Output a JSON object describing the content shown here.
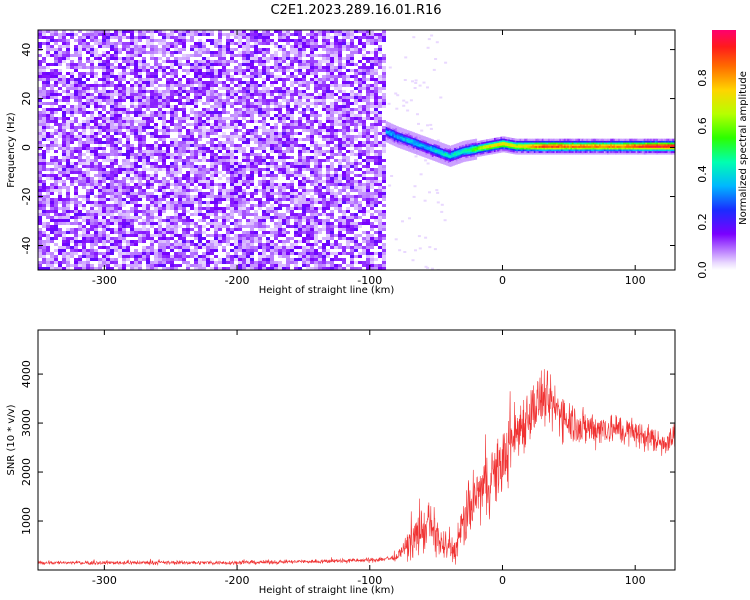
{
  "title": "C2E1.2023.289.16.01.R16",
  "colors": {
    "snr_line": "#f03232",
    "background_purple": "#6a00ff",
    "frame": "#000000"
  },
  "chart_data": [
    {
      "type": "heatmap",
      "xlabel": "Height of straight line (km)",
      "ylabel": "Frequency (Hz)",
      "xlim": [
        -350,
        130
      ],
      "ylim": [
        -50,
        48
      ],
      "xticks": [
        -300,
        -200,
        -100,
        0,
        100
      ],
      "yticks": [
        -40,
        -20,
        0,
        20,
        40
      ],
      "colorbar": {
        "label": "Normalized spectral amplitude",
        "range": [
          0,
          1
        ],
        "ticks": [
          "0.0",
          "0.2",
          "0.4",
          "0.6",
          "0.8"
        ],
        "colormap": "rainbow"
      },
      "noise_region_x": [
        -350,
        -88
      ],
      "signal_track": {
        "x": [
          -88,
          -80,
          -70,
          -60,
          -50,
          -40,
          -30,
          -20,
          -10,
          0,
          10,
          20,
          30,
          40,
          50,
          60,
          70,
          80,
          90,
          100,
          110,
          120,
          130
        ],
        "frequency": [
          7,
          5,
          3,
          1,
          -1,
          -3,
          -1,
          0,
          1,
          2,
          1,
          1,
          1,
          1,
          1,
          1,
          1,
          1,
          1,
          1,
          1,
          1,
          1
        ],
        "amplitude": [
          0.35,
          0.35,
          0.4,
          0.35,
          0.4,
          0.45,
          0.45,
          0.6,
          0.75,
          0.75,
          0.7,
          0.8,
          0.9,
          0.9,
          0.85,
          0.85,
          0.85,
          0.85,
          0.85,
          0.9,
          0.95,
          0.95,
          0.95
        ]
      }
    },
    {
      "type": "line",
      "xlabel": "Height of straight line (km)",
      "ylabel": "SNR (10 * v/v)",
      "xlim": [
        -350,
        130
      ],
      "ylim": [
        0,
        4900
      ],
      "xticks": [
        -300,
        -200,
        -100,
        0,
        100
      ],
      "yticks": [
        1000,
        2000,
        3000,
        4000
      ],
      "x": [
        -350,
        -300,
        -250,
        -200,
        -150,
        -100,
        -80,
        -65,
        -55,
        -45,
        -35,
        -30,
        -20,
        -10,
        0,
        10,
        20,
        30,
        40,
        50,
        60,
        80,
        100,
        120,
        130
      ],
      "y": [
        150,
        150,
        150,
        150,
        170,
        200,
        250,
        700,
        900,
        500,
        400,
        900,
        1500,
        1800,
        2200,
        2800,
        3200,
        3500,
        3300,
        3100,
        2900,
        2900,
        2800,
        2600,
        2700
      ],
      "noise_amplitude": [
        60,
        60,
        60,
        60,
        60,
        70,
        100,
        600,
        800,
        500,
        400,
        800,
        900,
        1000,
        1000,
        1000,
        900,
        900,
        800,
        700,
        600,
        500,
        450,
        400,
        400
      ]
    }
  ]
}
